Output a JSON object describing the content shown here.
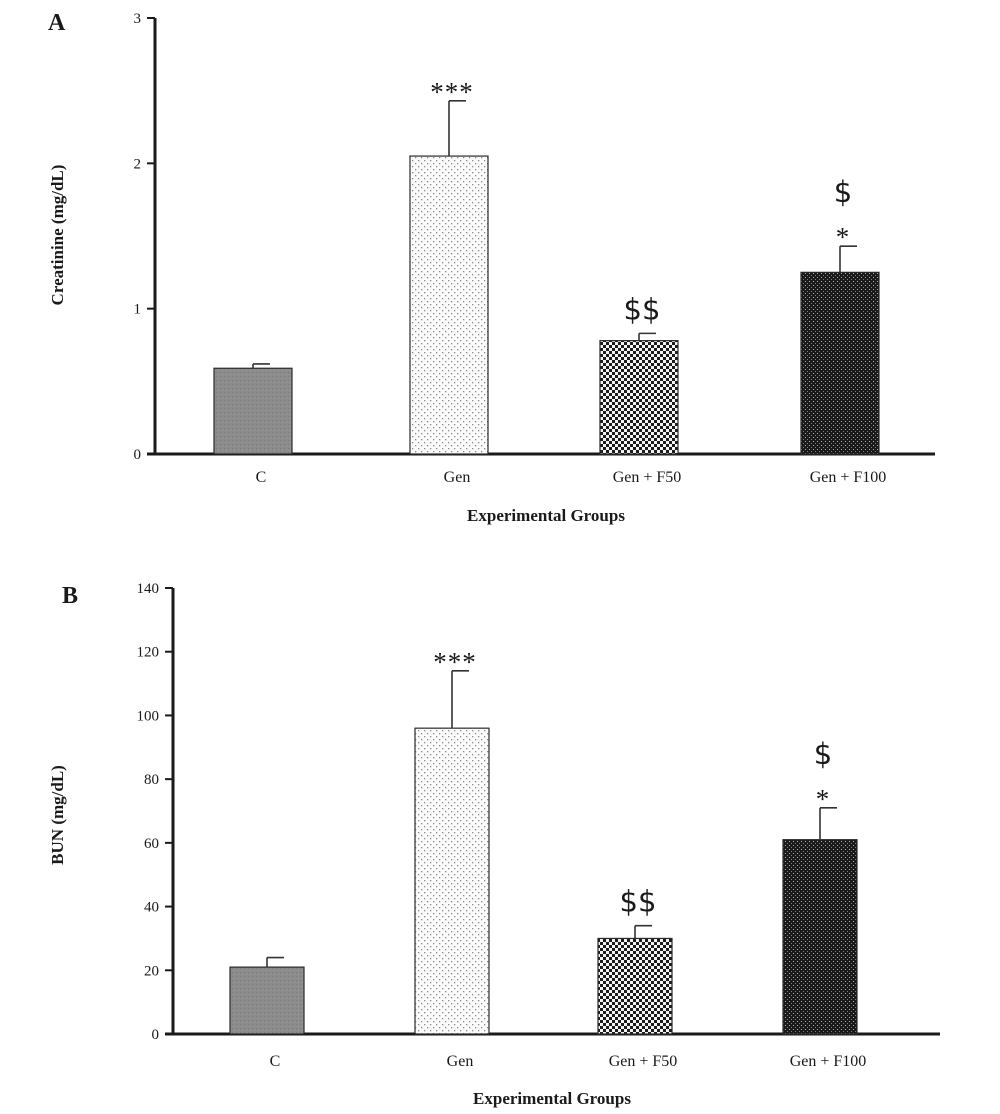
{
  "chart_data": [
    {
      "panel_label": "A",
      "type": "bar",
      "categories": [
        "C",
        "Gen",
        "Gen + F50",
        "Gen + F100"
      ],
      "values": [
        0.59,
        2.05,
        0.78,
        1.25
      ],
      "errors": [
        0.03,
        0.38,
        0.05,
        0.18
      ],
      "annotations": [
        [],
        [
          "***"
        ],
        [
          "$$"
        ],
        [
          "*",
          "$"
        ]
      ],
      "patterns": [
        "solid-gray",
        "light-dots",
        "checker",
        "dark-dots"
      ],
      "title": "",
      "xlabel": "Experimental Groups",
      "ylabel": "Creatinine (mg/dL)",
      "ylim": [
        0,
        3
      ],
      "yticks": [
        0,
        1,
        2,
        3
      ],
      "grid": false
    },
    {
      "panel_label": "B",
      "type": "bar",
      "categories": [
        "C",
        "Gen",
        "Gen + F50",
        "Gen + F100"
      ],
      "values": [
        21,
        96,
        30,
        61
      ],
      "errors": [
        3,
        18,
        4,
        10
      ],
      "annotations": [
        [],
        [
          "***"
        ],
        [
          "$$"
        ],
        [
          "*",
          "$"
        ]
      ],
      "patterns": [
        "solid-gray",
        "light-dots",
        "checker",
        "dark-dots"
      ],
      "title": "",
      "xlabel": "Experimental Groups",
      "ylabel": "BUN (mg/dL)",
      "ylim": [
        0,
        140
      ],
      "yticks": [
        0,
        20,
        40,
        60,
        80,
        100,
        120,
        140
      ],
      "grid": false
    }
  ]
}
